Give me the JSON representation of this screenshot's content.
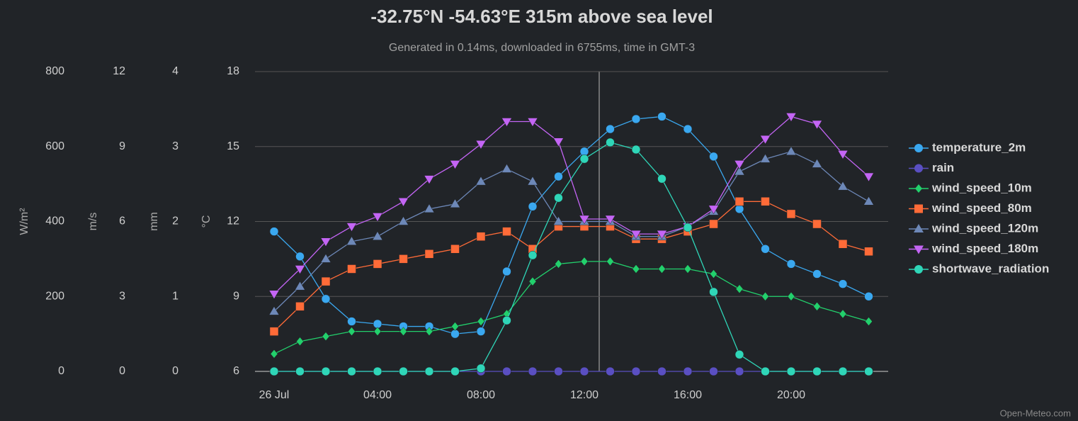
{
  "chart_data": {
    "type": "line",
    "title": "-32.75°N -54.63°E 315m above sea level",
    "subtitle": "Generated in 0.14ms, downloaded in 6755ms, time in GMT-3",
    "credit": "Open-Meteo.com",
    "categories": [
      "26 Jul",
      null,
      null,
      null,
      "04:00",
      null,
      null,
      null,
      "08:00",
      null,
      null,
      null,
      "12:00",
      null,
      null,
      null,
      "16:00",
      null,
      null,
      null,
      "20:00",
      null,
      null,
      null
    ],
    "y_axes": [
      {
        "label": "W/m²",
        "lim": [
          0,
          800
        ],
        "ticks": [
          0,
          200,
          400,
          600,
          800
        ]
      },
      {
        "label": "m/s",
        "lim": [
          0,
          12
        ],
        "ticks": [
          0,
          3,
          6,
          9,
          12
        ]
      },
      {
        "label": "mm",
        "lim": [
          0,
          4
        ],
        "ticks": [
          0,
          1,
          2,
          3,
          4
        ]
      },
      {
        "label": "°C",
        "lim": [
          6,
          18
        ],
        "ticks": [
          6,
          9,
          12,
          15,
          18
        ]
      }
    ],
    "grid": true,
    "legend": "right",
    "series": [
      {
        "name": "temperature_2m",
        "color": "#3aa8f0",
        "marker": "circle",
        "axis": 3,
        "values": [
          11.6,
          10.6,
          8.9,
          8.0,
          7.9,
          7.8,
          7.8,
          7.5,
          7.6,
          10.0,
          12.6,
          13.8,
          14.8,
          15.7,
          16.1,
          16.2,
          15.7,
          14.6,
          12.5,
          10.9,
          10.3,
          9.9,
          9.5,
          9.0
        ]
      },
      {
        "name": "rain",
        "color": "#5a4fc2",
        "marker": "circle",
        "axis": 2,
        "values": [
          0,
          0,
          0,
          0,
          0,
          0,
          0,
          0,
          0,
          0,
          0,
          0,
          0,
          0,
          0,
          0,
          0,
          0,
          0,
          0,
          0,
          0,
          0,
          0
        ]
      },
      {
        "name": "wind_speed_10m",
        "color": "#22d06c",
        "marker": "diamond",
        "axis": 1,
        "values": [
          0.7,
          1.2,
          1.4,
          1.6,
          1.6,
          1.6,
          1.6,
          1.8,
          2.0,
          2.3,
          3.6,
          4.3,
          4.4,
          4.4,
          4.1,
          4.1,
          4.1,
          3.9,
          3.3,
          3.0,
          3.0,
          2.6,
          2.3,
          2.0
        ]
      },
      {
        "name": "wind_speed_80m",
        "color": "#ff6b38",
        "marker": "square",
        "axis": 1,
        "values": [
          1.6,
          2.6,
          3.6,
          4.1,
          4.3,
          4.5,
          4.7,
          4.9,
          5.4,
          5.6,
          4.9,
          5.8,
          5.8,
          5.8,
          5.3,
          5.3,
          5.6,
          5.9,
          6.8,
          6.8,
          6.3,
          5.9,
          5.1,
          4.8
        ]
      },
      {
        "name": "wind_speed_120m",
        "color": "#6d88b8",
        "marker": "triangle",
        "axis": 1,
        "values": [
          2.4,
          3.4,
          4.5,
          5.2,
          5.4,
          6.0,
          6.5,
          6.7,
          7.6,
          8.1,
          7.6,
          6.0,
          6.0,
          6.0,
          5.4,
          5.4,
          5.8,
          6.4,
          8.0,
          8.5,
          8.8,
          8.3,
          7.4,
          6.8
        ]
      },
      {
        "name": "wind_speed_180m",
        "color": "#c465f5",
        "marker": "triangle-down",
        "axis": 1,
        "values": [
          3.1,
          4.1,
          5.2,
          5.8,
          6.2,
          6.8,
          7.7,
          8.3,
          9.1,
          10.0,
          10.0,
          9.2,
          6.1,
          6.1,
          5.5,
          5.5,
          5.8,
          6.5,
          8.3,
          9.3,
          10.2,
          9.9,
          8.7,
          7.8
        ]
      },
      {
        "name": "shortwave_radiation",
        "color": "#2fd6b8",
        "marker": "circle",
        "axis": 0,
        "values": [
          0,
          0,
          0,
          0,
          0,
          0,
          0,
          0,
          8,
          136,
          310,
          463,
          567,
          611,
          592,
          514,
          384,
          212,
          45,
          0,
          0,
          0,
          0,
          0
        ]
      }
    ]
  }
}
